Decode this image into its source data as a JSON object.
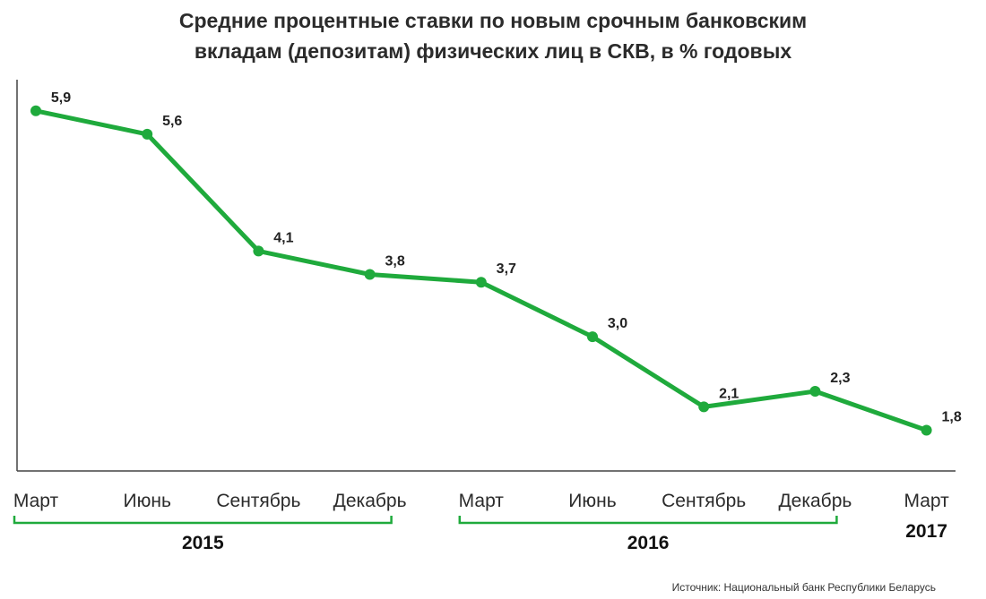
{
  "title_line1": "Средние процентные ставки по новым срочным банковским",
  "title_line2": "вкладам (депозитам) физических лиц в СКВ, в % годовых",
  "source": "Источник: Национальный банк Республики Беларусь",
  "colors": {
    "line": "#1faa3c",
    "axis": "#444444",
    "bracket": "#1faa3c"
  },
  "chart_data": {
    "type": "line",
    "title": "Средние процентные ставки по новым срочным банковским вкладам (депозитам) физических лиц в СКВ, в % годовых",
    "categories": [
      "Март",
      "Июнь",
      "Сентябрь",
      "Декабрь",
      "Март",
      "Июнь",
      "Сентябрь",
      "Декабрь",
      "Март"
    ],
    "values": [
      5.9,
      5.6,
      4.1,
      3.8,
      3.7,
      3.0,
      2.1,
      2.3,
      1.8
    ],
    "value_labels": [
      "5,9",
      "5,6",
      "4,1",
      "3,8",
      "3,7",
      "3,0",
      "2,1",
      "2,3",
      "1,8"
    ],
    "year_groups": [
      {
        "label": "2015",
        "from": 0,
        "to": 3
      },
      {
        "label": "2016",
        "from": 4,
        "to": 7
      },
      {
        "label": "2017",
        "from": 8,
        "to": 8
      }
    ],
    "ylim": [
      1.3,
      6.3
    ],
    "grid": false,
    "legend": "none"
  }
}
